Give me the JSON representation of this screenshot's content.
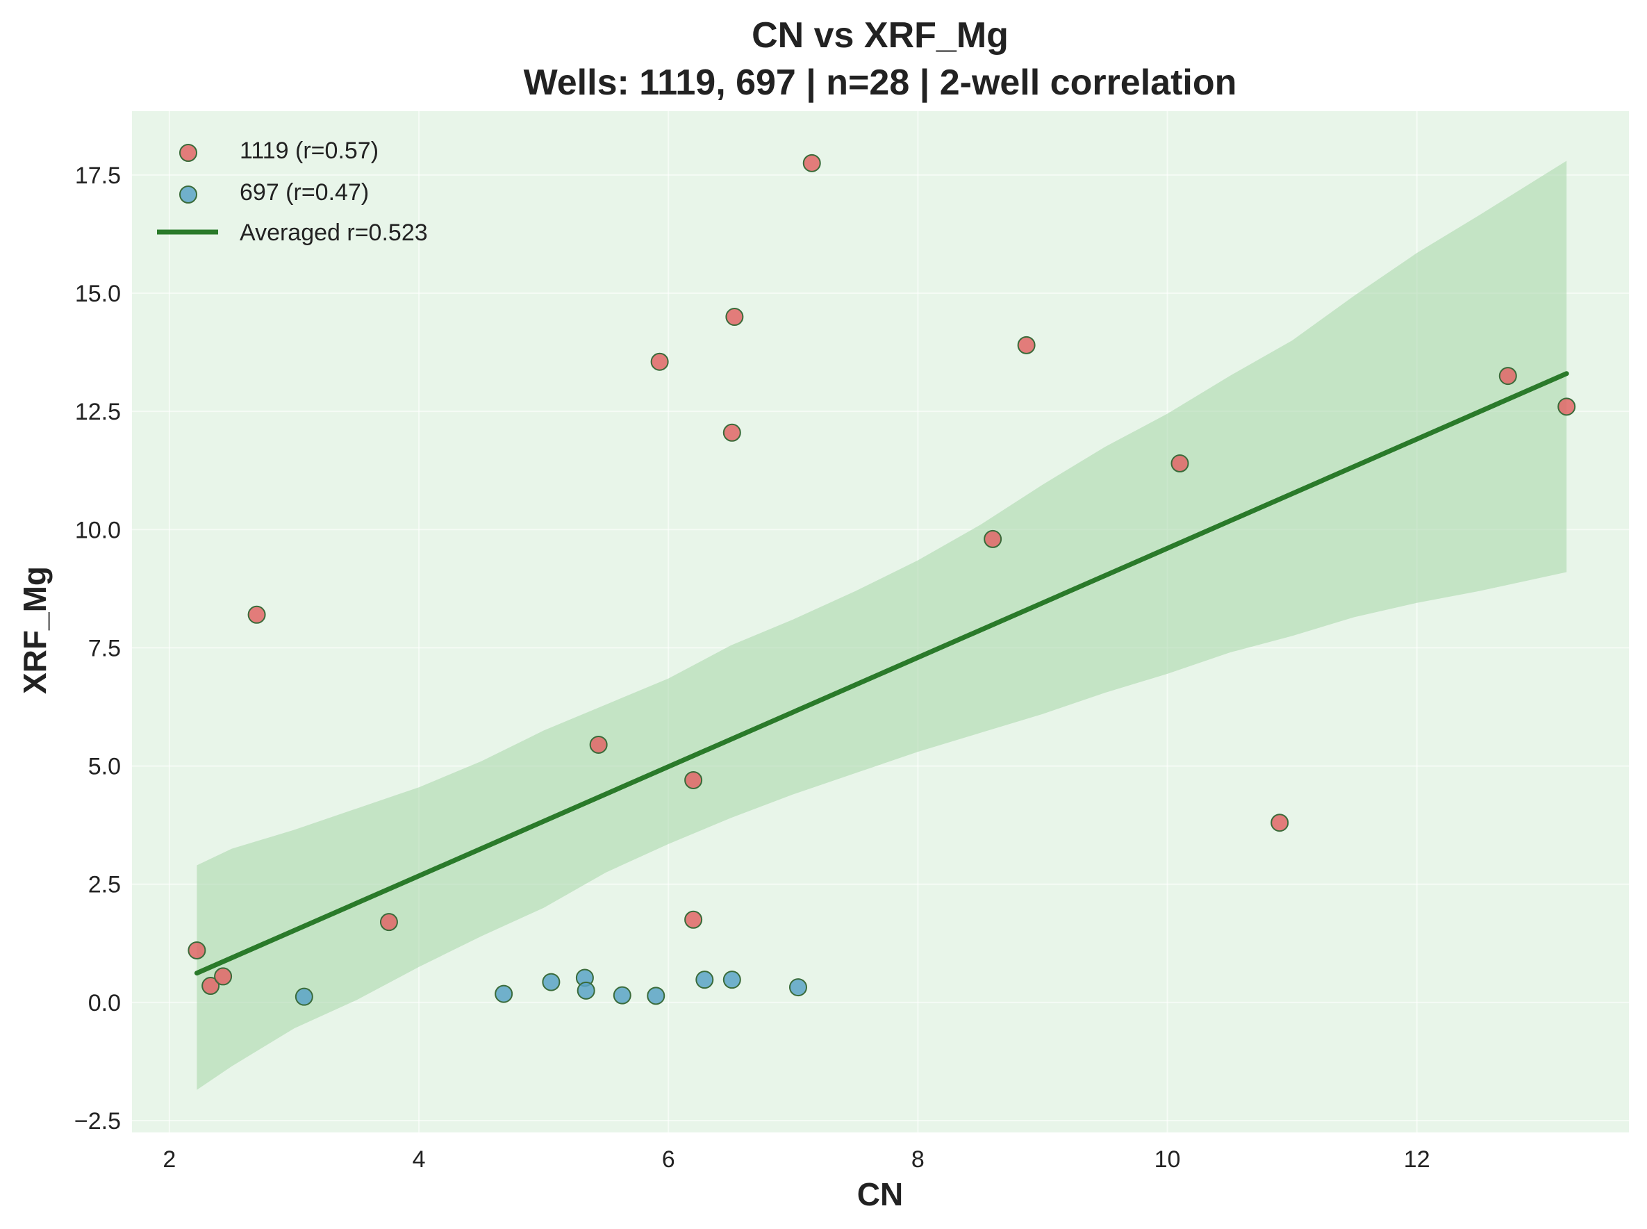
{
  "chart_data": {
    "type": "scatter",
    "title": "CN vs XRF_Mg",
    "subtitle": "Wells: 1119, 697 | n=28 | 2-well correlation",
    "xlabel": "CN",
    "ylabel": "XRF_Mg",
    "xlim": [
      1.7,
      13.7
    ],
    "ylim": [
      -2.75,
      18.85
    ],
    "xticks": [
      2,
      4,
      6,
      8,
      10,
      12
    ],
    "yticks": [
      -2.5,
      0.0,
      2.5,
      5.0,
      7.5,
      10.0,
      12.5,
      15.0,
      17.5
    ],
    "xtick_labels": [
      "2",
      "4",
      "6",
      "8",
      "10",
      "12"
    ],
    "ytick_labels": [
      "−2.5",
      "0.0",
      "2.5",
      "5.0",
      "7.5",
      "10.0",
      "12.5",
      "15.0",
      "17.5"
    ],
    "grid": true,
    "legend_position": "top-left",
    "background_color": "#e8f5e9",
    "series": [
      {
        "name": "1119 (r=0.57)",
        "color": "#e06666",
        "edge_color": "#3a6b3a",
        "points": [
          [
            2.22,
            1.1
          ],
          [
            2.33,
            0.35
          ],
          [
            2.43,
            0.55
          ],
          [
            2.7,
            8.2
          ],
          [
            3.76,
            1.7
          ],
          [
            5.44,
            5.45
          ],
          [
            5.93,
            13.55
          ],
          [
            6.2,
            4.7
          ],
          [
            6.2,
            1.75
          ],
          [
            6.51,
            12.05
          ],
          [
            6.53,
            14.5
          ],
          [
            7.15,
            17.75
          ],
          [
            8.6,
            9.8
          ],
          [
            8.87,
            13.9
          ],
          [
            10.1,
            11.4
          ],
          [
            10.9,
            3.8
          ],
          [
            12.73,
            13.25
          ],
          [
            13.2,
            12.6
          ]
        ]
      },
      {
        "name": "697 (r=0.47)",
        "color": "#5ba3c6",
        "edge_color": "#3a6b3a",
        "points": [
          [
            3.08,
            0.12
          ],
          [
            4.68,
            0.18
          ],
          [
            5.06,
            0.43
          ],
          [
            5.33,
            0.52
          ],
          [
            5.34,
            0.25
          ],
          [
            5.63,
            0.15
          ],
          [
            5.9,
            0.14
          ],
          [
            6.29,
            0.48
          ],
          [
            6.51,
            0.48
          ],
          [
            7.04,
            0.32
          ]
        ]
      }
    ],
    "regression": {
      "name": "Averaged r=0.523",
      "color": "#2a7a2a",
      "start": [
        2.22,
        0.62
      ],
      "end": [
        13.2,
        13.3
      ]
    },
    "confidence_band": {
      "color": "#a5d6a7",
      "x": [
        2.22,
        2.5,
        3.0,
        3.5,
        4.0,
        4.5,
        5.0,
        5.5,
        6.0,
        6.5,
        7.0,
        7.5,
        8.0,
        8.5,
        9.0,
        9.5,
        10.0,
        10.5,
        11.0,
        11.5,
        12.0,
        12.5,
        13.2
      ],
      "upper": [
        2.9,
        3.25,
        3.65,
        4.1,
        4.55,
        5.1,
        5.75,
        6.3,
        6.85,
        7.55,
        8.1,
        8.7,
        9.35,
        10.1,
        10.95,
        11.75,
        12.45,
        13.25,
        14.0,
        14.95,
        15.85,
        16.65,
        17.8
      ],
      "lower": [
        -1.85,
        -1.35,
        -0.55,
        0.05,
        0.75,
        1.4,
        2.0,
        2.75,
        3.35,
        3.9,
        4.4,
        4.85,
        5.3,
        5.7,
        6.1,
        6.55,
        6.95,
        7.4,
        7.75,
        8.15,
        8.45,
        8.7,
        9.1
      ]
    }
  }
}
